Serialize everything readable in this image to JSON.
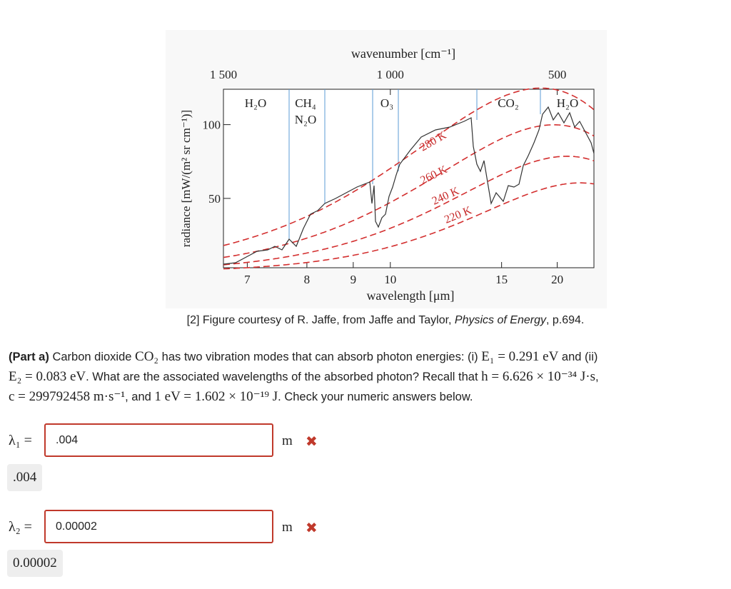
{
  "figure": {
    "x_label_top": "wavenumber [cm⁻¹]",
    "x_label": "wavelength [μm]",
    "y_label": "radiance [mW/(m² sr cm⁻¹)]",
    "wavenumber_ticks": [
      {
        "value": 1500,
        "label": "1 500"
      },
      {
        "value": 1000,
        "label": "1 000"
      },
      500
    ],
    "wavelength_ticks": [
      7,
      8,
      9,
      10,
      15,
      20
    ],
    "radiance_ticks": [
      50,
      100
    ],
    "wavenumber_lim": [
      1500,
      390
    ],
    "radiance_lim": [
      3,
      124
    ],
    "bands": [
      "H₂O",
      "CH₄",
      "N₂O",
      "O₃",
      "CO₂",
      "H₂O"
    ],
    "temperatures": [
      {
        "value": 280,
        "label": "280 K"
      },
      {
        "value": 260,
        "label": "260 K"
      },
      {
        "value": 240,
        "label": "240 K"
      },
      {
        "value": 220,
        "label": "220 K"
      }
    ],
    "caption": [
      "[2] Figure courtesy of R. Jaffe, from Jaffe and Taylor, ",
      "Physics of Energy",
      ", p.694."
    ]
  },
  "question": {
    "segments": [
      "(Part a)",
      " Carbon dioxide ",
      "CO₂",
      " has two vibration modes that can absorb photon energies: (i) ",
      "E₁ = 0.291 eV",
      " and (ii)",
      "E₂ = 0.083 eV",
      ". What are the associated wavelengths of the absorbed photon? Recall that ",
      "h = 6.626 × 10⁻³⁴ J·s",
      ",",
      "c = 299792458 m·s⁻¹",
      ", and ",
      "1 eV = 1.602 × 10⁻¹⁹ J",
      ". Check your numeric answers below."
    ]
  },
  "answers": [
    {
      "label": "λ₁ =",
      "input": ".004",
      "unit": "m",
      "response": ".004"
    },
    {
      "label": "λ₂ =",
      "input": "0.00002",
      "unit": "m",
      "response": "0.00002"
    }
  ]
}
